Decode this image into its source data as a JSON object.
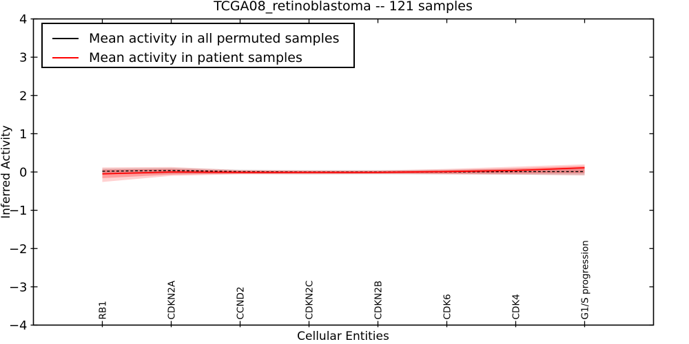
{
  "title": "TCGA08_retinoblastoma -- 121 samples",
  "legend": {
    "items": [
      {
        "label": "Mean activity in all permuted samples",
        "color": "#000000"
      },
      {
        "label": "Mean activity in patient samples",
        "color": "#ff0000"
      }
    ]
  },
  "chart_data": {
    "type": "line",
    "title": "TCGA08_retinoblastoma -- 121 samples",
    "xlabel": "Cellular Entities",
    "ylabel": "Inferred Activity",
    "ylim": [
      -4,
      4
    ],
    "yticks": [
      4,
      3,
      2,
      1,
      0,
      -1,
      -2,
      -3,
      -4
    ],
    "xlim_units": [
      -1,
      8
    ],
    "grid": false,
    "legend_position": "upper left",
    "categories": [
      "RB1",
      "CDKN2A",
      "CCND2",
      "CDKN2C",
      "CDKN2B",
      "CDK6",
      "CDK4",
      "G1/S progression"
    ],
    "series": [
      {
        "name": "Mean activity in all permuted samples",
        "color": "#000000",
        "line_style": "dashed",
        "values": [
          0.02,
          0.04,
          0.01,
          0.0,
          0.0,
          0.0,
          0.01,
          0.01
        ],
        "band": {
          "low": [
            -0.05,
            -0.05,
            -0.05,
            -0.06,
            -0.06,
            -0.06,
            -0.07,
            -0.08
          ],
          "high": [
            0.09,
            0.11,
            0.06,
            0.05,
            0.05,
            0.06,
            0.08,
            0.08
          ],
          "color": "rgba(0,0,0,0.12)"
        }
      },
      {
        "name": "Mean activity in patient samples",
        "color": "#ff0000",
        "line_style": "solid",
        "values": [
          -0.05,
          0.0,
          -0.01,
          -0.01,
          -0.01,
          0.01,
          0.04,
          0.11
        ],
        "band_outer": {
          "low": [
            -0.26,
            -0.1,
            -0.06,
            -0.06,
            -0.05,
            -0.06,
            -0.07,
            -0.09
          ],
          "high": [
            0.12,
            0.13,
            0.05,
            0.04,
            0.04,
            0.08,
            0.14,
            0.2
          ],
          "color": "rgba(255,0,0,0.18)"
        },
        "band_inner": {
          "low": [
            -0.16,
            -0.07,
            -0.04,
            -0.04,
            -0.04,
            -0.04,
            -0.04,
            -0.03
          ],
          "high": [
            0.06,
            0.08,
            0.03,
            0.02,
            0.02,
            0.05,
            0.1,
            0.16
          ],
          "color": "rgba(255,0,0,0.25)"
        }
      }
    ]
  }
}
